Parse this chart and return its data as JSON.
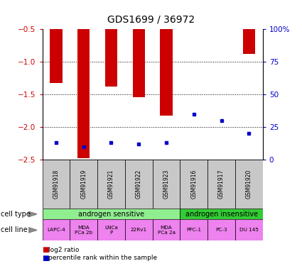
{
  "title": "GDS1699 / 36972",
  "samples": [
    "GSM91918",
    "GSM91919",
    "GSM91921",
    "GSM91922",
    "GSM91923",
    "GSM91916",
    "GSM91917",
    "GSM91920"
  ],
  "log2_ratio": [
    -1.32,
    -2.48,
    -1.38,
    -1.54,
    -1.82,
    -0.5,
    -0.5,
    -0.88
  ],
  "percentile_rank": [
    13,
    10,
    13,
    12,
    13,
    35,
    30,
    20
  ],
  "bar_color": "#cc0000",
  "dot_color": "#0000cc",
  "ylim_left": [
    -2.5,
    -0.5
  ],
  "ylim_right": [
    0,
    100
  ],
  "yticks_left": [
    -2.5,
    -2.0,
    -1.5,
    -1.0,
    -0.5
  ],
  "yticks_right": [
    0,
    25,
    50,
    75,
    100
  ],
  "cell_type_sensitive_color": "#90EE90",
  "cell_type_insensitive_color": "#33cc33",
  "cell_line_color": "#EE82EE",
  "sample_box_color": "#c8c8c8",
  "bar_width": 0.45,
  "cell_lines": [
    "LAPC-4",
    "MDA\nPCa 2b",
    "LNCa\nP",
    "22Rv1",
    "MDA\nPCa 2a",
    "PPC-1",
    "PC-3",
    "DU 145"
  ],
  "left_tick_color": "#cc0000",
  "right_tick_color": "#0000cc"
}
